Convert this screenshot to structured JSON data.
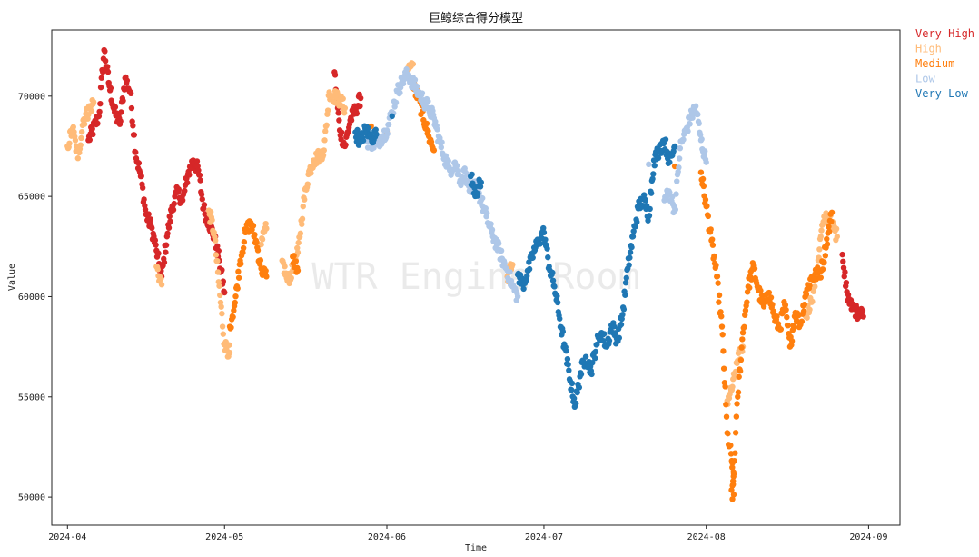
{
  "chart_data": {
    "type": "scatter",
    "title": "巨鲸综合得分模型",
    "xlabel": "Time",
    "ylabel": "Value",
    "x_type": "date",
    "xlim": [
      "2024-03-29",
      "2024-09-07"
    ],
    "ylim": [
      48600,
      73300
    ],
    "x_ticks": [
      "2024-04",
      "2024-05",
      "2024-06",
      "2024-07",
      "2024-08",
      "2024-09"
    ],
    "x_tick_dates": [
      "2024-04-01",
      "2024-05-01",
      "2024-06-01",
      "2024-07-01",
      "2024-08-01",
      "2024-09-01"
    ],
    "y_ticks": [
      50000,
      55000,
      60000,
      65000,
      70000
    ],
    "grid": false,
    "legend_position": "outside-top-right",
    "watermark": "WTR Engine Room",
    "series": [
      {
        "name": "Very High",
        "color": "#d62728",
        "segments": [
          [
            "2024-04-05",
            67800
          ],
          [
            "2024-04-07",
            69000
          ],
          [
            "2024-04-08",
            72300
          ],
          [
            "2024-04-09",
            70500
          ],
          [
            "2024-04-10",
            69200
          ],
          [
            "2024-04-11",
            68600
          ],
          [
            "2024-04-12",
            70900
          ],
          [
            "2024-04-13",
            70200
          ],
          [
            "2024-04-14",
            67200
          ],
          [
            "2024-04-15",
            66000
          ],
          [
            "2024-04-16",
            64100
          ],
          [
            "2024-04-17",
            63500
          ],
          [
            "2024-04-18",
            62300
          ],
          [
            "2024-04-19",
            61000
          ],
          [
            "2024-04-20",
            63000
          ],
          [
            "2024-04-21",
            64500
          ],
          [
            "2024-04-22",
            65200
          ],
          [
            "2024-04-23",
            64800
          ],
          [
            "2024-04-24",
            66100
          ],
          [
            "2024-04-25",
            66800
          ],
          [
            "2024-04-26",
            66300
          ],
          [
            "2024-04-27",
            64400
          ],
          [
            "2024-04-28",
            63700
          ],
          [
            "2024-04-29",
            63000
          ],
          [
            "2024-04-30",
            61800
          ],
          [
            "2024-05-01",
            60200
          ],
          [
            "2024-05-22",
            71200
          ],
          [
            "2024-05-23",
            68300
          ],
          [
            "2024-05-24",
            67500
          ],
          [
            "2024-05-25",
            68800
          ],
          [
            "2024-05-26",
            69300
          ],
          [
            "2024-05-27",
            69900
          ],
          [
            "2024-08-27",
            62100
          ],
          [
            "2024-08-28",
            59800
          ],
          [
            "2024-08-29",
            59400
          ],
          [
            "2024-08-30",
            59200
          ],
          [
            "2024-08-31",
            59000
          ]
        ]
      },
      {
        "name": "High",
        "color": "#ffbb78",
        "segments": [
          [
            "2024-04-01",
            67500
          ],
          [
            "2024-04-02",
            68400
          ],
          [
            "2024-04-03",
            66900
          ],
          [
            "2024-04-04",
            68800
          ],
          [
            "2024-04-06",
            69700
          ],
          [
            "2024-04-18",
            61500
          ],
          [
            "2024-04-19",
            60600
          ],
          [
            "2024-04-28",
            64300
          ],
          [
            "2024-04-29",
            63200
          ],
          [
            "2024-05-01",
            57600
          ],
          [
            "2024-05-02",
            57200
          ],
          [
            "2024-05-08",
            62600
          ],
          [
            "2024-05-09",
            63400
          ],
          [
            "2024-05-12",
            61800
          ],
          [
            "2024-05-13",
            60800
          ],
          [
            "2024-05-14",
            61300
          ],
          [
            "2024-05-15",
            62200
          ],
          [
            "2024-05-16",
            64500
          ],
          [
            "2024-05-17",
            66100
          ],
          [
            "2024-05-18",
            66800
          ],
          [
            "2024-05-19",
            67000
          ],
          [
            "2024-05-20",
            67300
          ],
          [
            "2024-05-21",
            70200
          ],
          [
            "2024-05-23",
            69800
          ],
          [
            "2024-05-24",
            69400
          ],
          [
            "2024-06-05",
            71400
          ],
          [
            "2024-06-06",
            71600
          ],
          [
            "2024-06-24",
            61000
          ],
          [
            "2024-06-25",
            61600
          ],
          [
            "2024-08-05",
            54800
          ],
          [
            "2024-08-06",
            55500
          ],
          [
            "2024-08-07",
            56800
          ],
          [
            "2024-08-08",
            57500
          ],
          [
            "2024-08-20",
            59000
          ],
          [
            "2024-08-21",
            59800
          ],
          [
            "2024-08-22",
            61000
          ],
          [
            "2024-08-23",
            63300
          ],
          [
            "2024-08-24",
            64100
          ],
          [
            "2024-08-25",
            63600
          ],
          [
            "2024-08-26",
            63000
          ]
        ]
      },
      {
        "name": "Medium",
        "color": "#ff7f0e",
        "segments": [
          [
            "2024-05-02",
            58500
          ],
          [
            "2024-05-03",
            59700
          ],
          [
            "2024-05-04",
            61800
          ],
          [
            "2024-05-05",
            63200
          ],
          [
            "2024-05-06",
            63700
          ],
          [
            "2024-05-07",
            62800
          ],
          [
            "2024-05-08",
            61400
          ],
          [
            "2024-05-09",
            61000
          ],
          [
            "2024-05-14",
            62000
          ],
          [
            "2024-05-15",
            61300
          ],
          [
            "2024-05-29",
            68500
          ],
          [
            "2024-06-01",
            68200
          ],
          [
            "2024-06-06",
            70500
          ],
          [
            "2024-06-07",
            69900
          ],
          [
            "2024-06-09",
            68000
          ],
          [
            "2024-06-10",
            67300
          ],
          [
            "2024-07-26",
            66500
          ],
          [
            "2024-07-31",
            66200
          ],
          [
            "2024-08-01",
            64500
          ],
          [
            "2024-08-02",
            62800
          ],
          [
            "2024-08-03",
            61000
          ],
          [
            "2024-08-04",
            58500
          ],
          [
            "2024-08-05",
            53200
          ],
          [
            "2024-08-06",
            51700
          ],
          [
            "2024-08-06",
            49900
          ],
          [
            "2024-08-07",
            55000
          ],
          [
            "2024-08-08",
            58200
          ],
          [
            "2024-08-09",
            60500
          ],
          [
            "2024-08-10",
            61500
          ],
          [
            "2024-08-11",
            60300
          ],
          [
            "2024-08-12",
            59500
          ],
          [
            "2024-08-13",
            60200
          ],
          [
            "2024-08-14",
            59000
          ],
          [
            "2024-08-15",
            58400
          ],
          [
            "2024-08-16",
            59600
          ],
          [
            "2024-08-17",
            57500
          ],
          [
            "2024-08-18",
            59200
          ],
          [
            "2024-08-19",
            58600
          ],
          [
            "2024-08-20",
            60200
          ],
          [
            "2024-08-21",
            60900
          ],
          [
            "2024-08-23",
            61300
          ],
          [
            "2024-08-25",
            64200
          ]
        ]
      },
      {
        "name": "Low",
        "color": "#aec7e8",
        "segments": [
          [
            "2024-05-28",
            67800
          ],
          [
            "2024-05-30",
            67600
          ],
          [
            "2024-06-01",
            68300
          ],
          [
            "2024-06-02",
            69200
          ],
          [
            "2024-06-03",
            70200
          ],
          [
            "2024-06-04",
            70800
          ],
          [
            "2024-06-05",
            71100
          ],
          [
            "2024-06-07",
            70200
          ],
          [
            "2024-06-08",
            69800
          ],
          [
            "2024-06-09",
            69400
          ],
          [
            "2024-06-10",
            68900
          ],
          [
            "2024-06-11",
            67800
          ],
          [
            "2024-06-12",
            67000
          ],
          [
            "2024-06-13",
            66300
          ],
          [
            "2024-06-14",
            66700
          ],
          [
            "2024-06-15",
            65800
          ],
          [
            "2024-06-16",
            66200
          ],
          [
            "2024-06-17",
            65200
          ],
          [
            "2024-06-18",
            65600
          ],
          [
            "2024-06-19",
            64800
          ],
          [
            "2024-06-20",
            64000
          ],
          [
            "2024-06-21",
            63200
          ],
          [
            "2024-06-22",
            62600
          ],
          [
            "2024-06-23",
            61900
          ],
          [
            "2024-06-24",
            61300
          ],
          [
            "2024-06-25",
            60500
          ],
          [
            "2024-06-26",
            60000
          ],
          [
            "2024-07-21",
            66600
          ],
          [
            "2024-07-24",
            64800
          ],
          [
            "2024-07-25",
            65200
          ],
          [
            "2024-07-26",
            64300
          ],
          [
            "2024-07-27",
            67400
          ],
          [
            "2024-07-28",
            68200
          ],
          [
            "2024-07-29",
            68900
          ],
          [
            "2024-07-30",
            69500
          ],
          [
            "2024-07-31",
            67800
          ],
          [
            "2024-08-01",
            66700
          ]
        ]
      },
      {
        "name": "Very Low",
        "color": "#1f77b4",
        "segments": [
          [
            "2024-05-26",
            68200
          ],
          [
            "2024-05-27",
            67700
          ],
          [
            "2024-05-28",
            68400
          ],
          [
            "2024-05-29",
            67900
          ],
          [
            "2024-05-30",
            68100
          ],
          [
            "2024-06-02",
            69000
          ],
          [
            "2024-06-17",
            66000
          ],
          [
            "2024-06-18",
            65200
          ],
          [
            "2024-06-19",
            65700
          ],
          [
            "2024-06-26",
            61100
          ],
          [
            "2024-06-27",
            60600
          ],
          [
            "2024-06-28",
            61300
          ],
          [
            "2024-06-29",
            62200
          ],
          [
            "2024-06-30",
            62800
          ],
          [
            "2024-07-01",
            63200
          ],
          [
            "2024-07-02",
            61500
          ],
          [
            "2024-07-03",
            60500
          ],
          [
            "2024-07-04",
            58900
          ],
          [
            "2024-07-05",
            57400
          ],
          [
            "2024-07-06",
            55800
          ],
          [
            "2024-07-07",
            54600
          ],
          [
            "2024-07-08",
            56200
          ],
          [
            "2024-07-09",
            57000
          ],
          [
            "2024-07-10",
            56300
          ],
          [
            "2024-07-11",
            57600
          ],
          [
            "2024-07-12",
            58200
          ],
          [
            "2024-07-13",
            57500
          ],
          [
            "2024-07-14",
            58600
          ],
          [
            "2024-07-15",
            57800
          ],
          [
            "2024-07-16",
            59100
          ],
          [
            "2024-07-17",
            61400
          ],
          [
            "2024-07-18",
            63000
          ],
          [
            "2024-07-19",
            64400
          ],
          [
            "2024-07-20",
            64900
          ],
          [
            "2024-07-21",
            64000
          ],
          [
            "2024-07-22",
            66800
          ],
          [
            "2024-07-23",
            67300
          ],
          [
            "2024-07-24",
            67800
          ],
          [
            "2024-07-25",
            66700
          ],
          [
            "2024-07-26",
            67500
          ]
        ]
      }
    ]
  }
}
